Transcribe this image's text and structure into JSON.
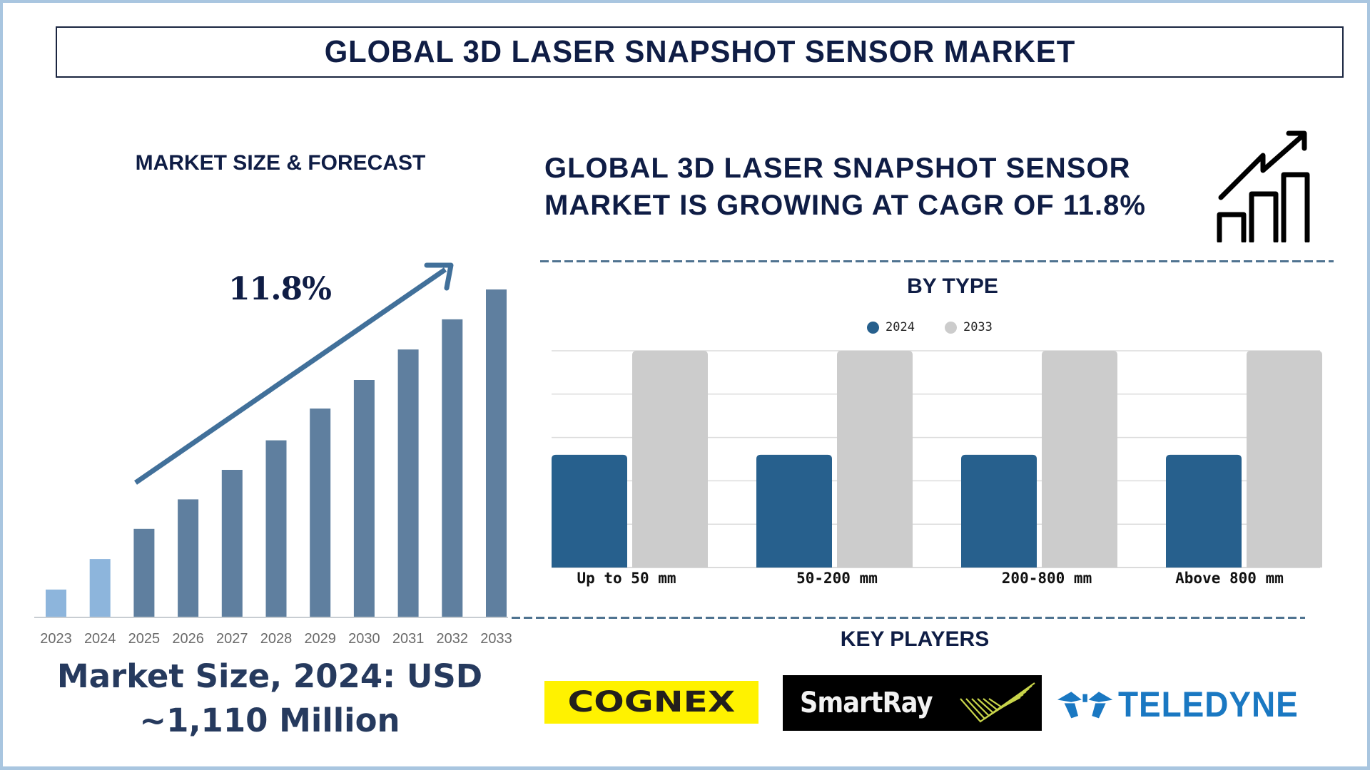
{
  "title": "GLOBAL 3D LASER SNAPSHOT SENSOR MARKET",
  "left_panel": {
    "heading": "MARKET SIZE & FORECAST",
    "cagr_label": "11.8%",
    "market_size_line1": "Market Size, 2024: USD",
    "market_size_line2": "~1,110 Million"
  },
  "right_panel": {
    "headline_line1": "GLOBAL 3D LASER SNAPSHOT SENSOR",
    "headline_line2": "MARKET IS GROWING AT CAGR OF 11.8%",
    "headline_icon": "growth-chart-icon",
    "by_type_heading": "BY TYPE",
    "key_players_heading": "KEY PLAYERS"
  },
  "key_players": [
    {
      "name": "COGNEX",
      "bg_color": "#fff200",
      "text_color": "#231f1c"
    },
    {
      "name": "SmartRay",
      "bg_color": "#000000",
      "text_color": "#f2f2f2",
      "accent_color": "#c8d44a"
    },
    {
      "name": "TELEDYNE",
      "bg_color": "#ffffff",
      "text_color": "#1a78c2"
    }
  ],
  "colors": {
    "title_text": "#0f1d45",
    "frame": "#a9c6e0",
    "bar_historic": "#8db5dc",
    "bar_forecast": "#5f7f9f",
    "arrow": "#41709a",
    "series_2024": "#27608d",
    "series_2033": "#cccccc",
    "dash": "#4f7390"
  },
  "chart_data": [
    {
      "type": "bar",
      "title": "MARKET SIZE & FORECAST",
      "annotation": "11.8%",
      "categories": [
        "2023",
        "2024",
        "2025",
        "2026",
        "2027",
        "2028",
        "2029",
        "2030",
        "2031",
        "2032",
        "2033"
      ],
      "values": [
        8.5,
        17.8,
        27,
        36,
        45,
        54,
        63.7,
        72.4,
        81.7,
        90.9,
        100
      ],
      "value_note": "relative bar heights, 2033 = 100 (no y-axis shown)",
      "historic_categories": [
        "2023",
        "2024"
      ],
      "xlabel": "",
      "ylabel": "",
      "ylim": [
        0,
        100
      ],
      "grid": false,
      "legend": "none"
    },
    {
      "type": "bar",
      "title": "BY TYPE",
      "categories": [
        "Up to 50 mm",
        "50-200 mm",
        "200-800 mm",
        "Above 800 mm"
      ],
      "series": [
        {
          "name": "2024",
          "values": [
            52,
            52,
            52,
            52
          ]
        },
        {
          "name": "2033",
          "values": [
            100,
            100,
            100,
            100
          ]
        }
      ],
      "value_note": "relative heights; gridlines at 0,20,40,60,80,100 (unlabeled)",
      "ylim": [
        0,
        100
      ],
      "grid": true,
      "legend": "top-center"
    }
  ]
}
